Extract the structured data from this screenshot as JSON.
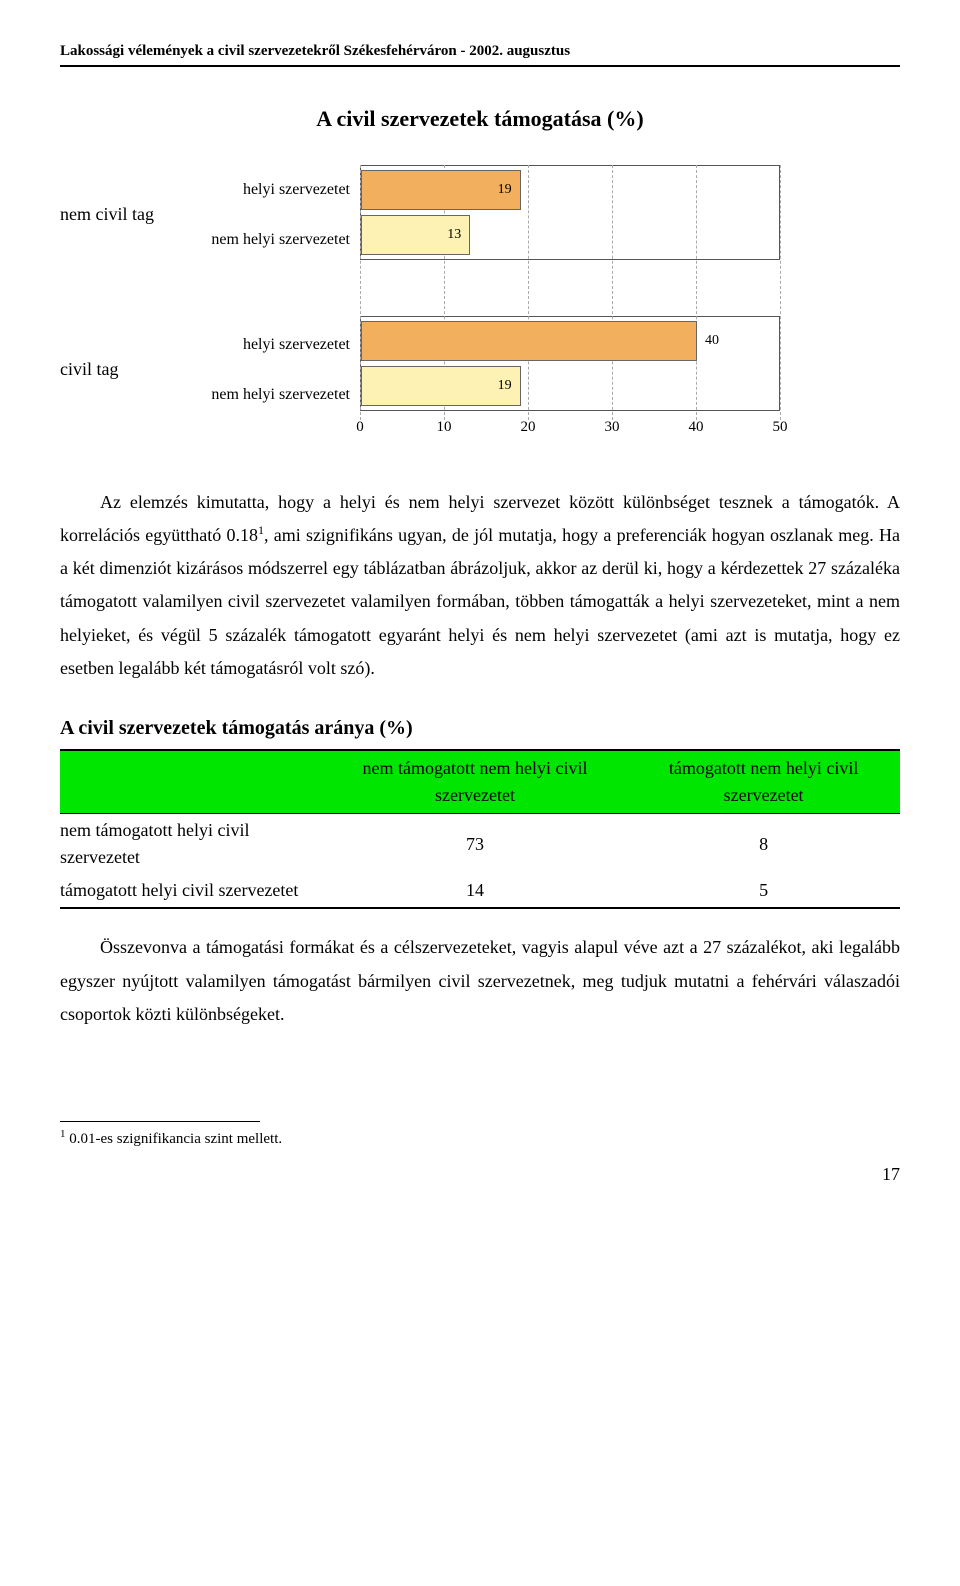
{
  "header": "Lakossági vélemények a civil szervezetekről Székesfehérváron - 2002. augusztus",
  "chart": {
    "title": "A civil szervezetek támogatása (%)",
    "groups": [
      {
        "label": "nem civil tag",
        "series": [
          {
            "label": "helyi szervezetet",
            "value": 19,
            "color": "#f2b05e",
            "value_inside": true
          },
          {
            "label": "nem helyi szervezetet",
            "value": 13,
            "color": "#fdf2b3",
            "value_inside": true
          }
        ]
      },
      {
        "label": "civil tag",
        "series": [
          {
            "label": "helyi szervezetet",
            "value": 40,
            "color": "#f2b05e",
            "value_inside": false
          },
          {
            "label": "nem helyi szervezetet",
            "value": 19,
            "color": "#fdf2b3",
            "value_inside": true
          }
        ]
      }
    ],
    "xaxis": {
      "min": 0,
      "max": 50,
      "ticks": [
        0,
        10,
        20,
        30,
        40,
        50
      ]
    },
    "grid_color": "#aaaaaa",
    "border_color": "#555555"
  },
  "paragraphs": {
    "p1_a": "Az elemzés kimutatta, hogy a helyi és nem helyi szervezet között különbséget tesznek a támogatók. A korrelációs együttható 0.18",
    "p1_b": ", ami szignifikáns ugyan, de jól mutatja, hogy a preferenciák hogyan oszlanak meg. Ha a két dimenziót kizárásos módszerrel egy táblázatban ábrázoljuk, akkor az derül ki, hogy a kérdezettek 27 százaléka támogatott valamilyen civil szervezetet valamilyen formában, többen támogatták a helyi szervezeteket, mint a nem helyieket, és végül 5 százalék támogatott egyaránt helyi és nem helyi szervezetet (ami azt is mutatja, hogy ez esetben legalább két támogatásról volt szó).",
    "p1_sup": "1",
    "p2": "Összevonva a támogatási formákat és a célszervezeteket, vagyis alapul véve azt a 27 százalékot, aki legalább egyszer nyújtott valamilyen támogatást bármilyen civil szervezetnek, meg tudjuk mutatni a fehérvári válaszadói csoportok közti különbségeket."
  },
  "table": {
    "title": "A civil szervezetek támogatás aránya (%)",
    "header_bg": "#00e600",
    "columns": [
      "nem támogatott nem helyi civil szervezetet",
      "támogatott nem helyi civil szervezetet"
    ],
    "rows": [
      {
        "label": "nem támogatott helyi civil szervezetet",
        "cells": [
          "73",
          "8"
        ]
      },
      {
        "label": "támogatott helyi civil szervezetet",
        "cells": [
          "14",
          "5"
        ]
      }
    ]
  },
  "footnote": {
    "marker": "1",
    "text": " 0.01-es szignifikancia szint mellett."
  },
  "page_number": "17"
}
